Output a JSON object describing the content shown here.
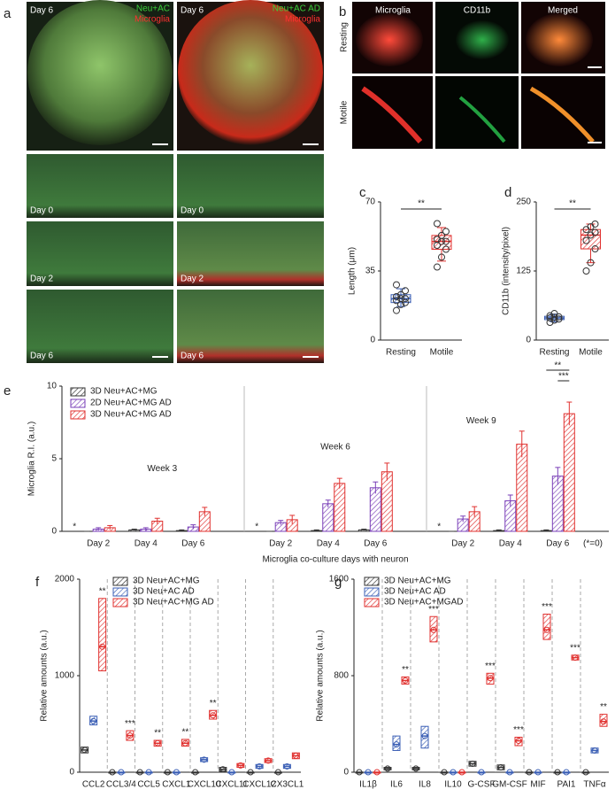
{
  "panel_labels": [
    "a",
    "b",
    "c",
    "d",
    "e",
    "f",
    "g"
  ],
  "images": {
    "a": {
      "overview": [
        {
          "day": "Day 6",
          "channels": [
            "Neu+AC",
            "Microglia"
          ]
        },
        {
          "day": "Day 6",
          "channels": [
            "Neu+AC AD",
            "Microglia"
          ]
        }
      ],
      "rows": [
        "Day 0",
        "Day 2",
        "Day 6"
      ]
    },
    "b": {
      "columns": [
        "Microglia",
        "CD11b",
        "Merged"
      ],
      "rows": [
        "Resting",
        "Motile"
      ]
    }
  },
  "chart_data": [
    {
      "type": "box",
      "ylabel": "Length (μm)",
      "categories": [
        "Resting",
        "Motile"
      ],
      "colors": [
        "#3b5fb5",
        "#e0312f"
      ],
      "ylim": [
        0,
        70
      ],
      "yticks": [
        0,
        35,
        70
      ],
      "boxes": [
        {
          "min": 17,
          "q1": 19,
          "median": 21,
          "q3": 23,
          "max": 26
        },
        {
          "min": 40,
          "q1": 46,
          "median": 50,
          "q3": 53,
          "max": 57
        }
      ],
      "points": [
        [
          15,
          18,
          19,
          20,
          21,
          21,
          22,
          23,
          25,
          28
        ],
        [
          37,
          42,
          46,
          48,
          50,
          50,
          51,
          53,
          55,
          59
        ]
      ],
      "significance": "**"
    },
    {
      "type": "box",
      "ylabel": "CD11b (intensity/pixel)",
      "categories": [
        "Resting",
        "Motile"
      ],
      "colors": [
        "#3b5fb5",
        "#e0312f"
      ],
      "ylim": [
        0,
        250
      ],
      "yticks": [
        0,
        125,
        250
      ],
      "boxes": [
        {
          "min": 33,
          "q1": 37,
          "median": 40,
          "q3": 43,
          "max": 47
        },
        {
          "min": 140,
          "q1": 165,
          "median": 190,
          "q3": 200,
          "max": 210
        }
      ],
      "points": [
        [
          32,
          36,
          38,
          40,
          41,
          42,
          44,
          48
        ],
        [
          125,
          140,
          165,
          180,
          190,
          195,
          200,
          205,
          210
        ]
      ],
      "significance": "**"
    },
    {
      "type": "bar",
      "ylabel": "Microglia R.I. (a.u.)",
      "xlabel": "Microglia co-culture days with neuron",
      "categories": [
        "Day 2",
        "Day 4",
        "Day 6",
        "Day 2",
        "Day 4",
        "Day 6",
        "Day 2",
        "Day 4",
        "Day 6"
      ],
      "groups": [
        "Week 3",
        "Week 6",
        "Week 9"
      ],
      "ylim": [
        0,
        10
      ],
      "yticks": [
        0,
        5,
        10
      ],
      "series": [
        {
          "name": "3D Neu+AC+MG",
          "color": "#333333",
          "values": [
            0,
            0.1,
            0.05,
            0,
            0.05,
            0.1,
            0,
            0.05,
            0.05
          ],
          "errors": [
            0,
            0.05,
            0.05,
            0,
            0.05,
            0.05,
            0,
            0.05,
            0.05
          ]
        },
        {
          "name": "2D Neu+AC+MG AD",
          "color": "#7a3fb8",
          "values": [
            0.15,
            0.15,
            0.3,
            0.6,
            1.9,
            3.0,
            0.85,
            2.1,
            3.8
          ],
          "errors": [
            0.1,
            0.1,
            0.15,
            0.15,
            0.25,
            0.4,
            0.2,
            0.4,
            0.6
          ]
        },
        {
          "name": "3D Neu+AC+MG AD",
          "color": "#e0312f",
          "values": [
            0.25,
            0.7,
            1.35,
            0.8,
            3.3,
            4.1,
            1.35,
            6.0,
            8.1
          ],
          "errors": [
            0.15,
            0.2,
            0.3,
            0.3,
            0.35,
            0.6,
            0.35,
            0.9,
            0.8
          ]
        }
      ],
      "zero_marker": "*",
      "zero_note": "(*=0)",
      "brackets": [
        {
          "label": "**"
        },
        {
          "label": "***"
        }
      ]
    },
    {
      "type": "box",
      "ylabel": "Relative amounts (a.u.)",
      "categories": [
        "CCL2",
        "CCL3/4",
        "CCL5",
        "CXCL1",
        "CXCL10",
        "CXCL11",
        "CXCL12",
        "CX3CL1"
      ],
      "ylim": [
        0,
        2000
      ],
      "yticks": [
        0,
        1000,
        2000
      ],
      "series": [
        {
          "name": "3D Neu+AC+MG",
          "color": "#333333",
          "values": [
            230,
            0,
            0,
            0,
            0,
            30,
            0,
            0
          ],
          "lows": [
            200,
            0,
            0,
            0,
            0,
            10,
            0,
            0
          ],
          "highs": [
            260,
            0,
            0,
            0,
            0,
            50,
            0,
            0
          ]
        },
        {
          "name": "3D Neu+AC AD",
          "color": "#3b5fb5",
          "values": [
            530,
            0,
            0,
            0,
            130,
            0,
            60,
            60
          ],
          "lows": [
            490,
            0,
            0,
            0,
            110,
            0,
            40,
            40
          ],
          "highs": [
            580,
            0,
            0,
            0,
            150,
            0,
            80,
            80
          ]
        },
        {
          "name": "3D Neu+AC+MG AD",
          "color": "#e0312f",
          "values": [
            1300,
            380,
            300,
            300,
            590,
            70,
            120,
            170
          ],
          "lows": [
            1050,
            330,
            270,
            270,
            550,
            50,
            100,
            140
          ],
          "highs": [
            1800,
            430,
            330,
            340,
            640,
            90,
            140,
            200
          ]
        }
      ],
      "significance": [
        "**",
        "***",
        "**",
        "**",
        "**",
        null,
        null,
        null
      ]
    },
    {
      "type": "box",
      "ylabel": "Relative amounts (a.u.)",
      "categories": [
        "IL1β",
        "IL6",
        "IL8",
        "IL10",
        "G-CSF",
        "GM-CSF",
        "MIF",
        "PAI1",
        "TNFα"
      ],
      "ylim": [
        0,
        1600
      ],
      "yticks": [
        0,
        800,
        1600
      ],
      "series": [
        {
          "name": "3D Neu+AC+MG",
          "color": "#333333",
          "values": [
            0,
            30,
            30,
            0,
            70,
            40,
            0,
            0,
            0
          ],
          "lows": [
            0,
            20,
            20,
            0,
            50,
            20,
            0,
            0,
            0
          ],
          "highs": [
            0,
            40,
            40,
            0,
            90,
            60,
            0,
            0,
            0
          ]
        },
        {
          "name": "3D Neu+AC AD",
          "color": "#3b5fb5",
          "values": [
            0,
            230,
            300,
            0,
            0,
            0,
            0,
            0,
            180
          ],
          "lows": [
            0,
            180,
            200,
            0,
            0,
            0,
            0,
            0,
            160
          ],
          "highs": [
            0,
            300,
            380,
            0,
            0,
            0,
            0,
            0,
            200
          ]
        },
        {
          "name": "3D Neu+AC+MGAD",
          "color": "#e0312f",
          "values": [
            0,
            760,
            1180,
            0,
            780,
            260,
            1180,
            950,
            420
          ],
          "lows": [
            0,
            730,
            1080,
            0,
            730,
            220,
            1100,
            930,
            380
          ],
          "highs": [
            0,
            790,
            1290,
            0,
            820,
            290,
            1310,
            970,
            480
          ]
        }
      ],
      "significance": [
        null,
        "**",
        "***",
        null,
        "***",
        "***",
        "***",
        "***",
        "**"
      ]
    }
  ]
}
